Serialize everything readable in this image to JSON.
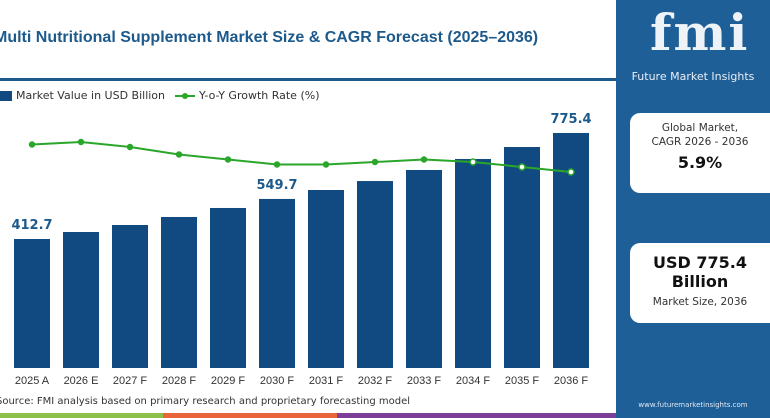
{
  "chart_data": {
    "type": "bar",
    "title": "Multi Nutritional Supplement Market Size & CAGR Forecast (2025–2036)",
    "categories": [
      "2025 A",
      "2026 E",
      "2027 F",
      "2028 F",
      "2029 F",
      "2030 F",
      "2031 F",
      "2032 F",
      "2033 F",
      "2034 F",
      "2035 F",
      "2036 F"
    ],
    "series": [
      {
        "name": "Market Value in USD Billion",
        "type": "bar",
        "color": "#114a80",
        "values": [
          412.7,
          436.6,
          460.6,
          488.0,
          518.8,
          549.7,
          580.3,
          611.0,
          648.8,
          686.4,
          727.4,
          775.4
        ]
      },
      {
        "name": "Y-o-Y Growth Rate (%)",
        "type": "line",
        "color": "#2aa62a",
        "values": [
          6.4,
          6.5,
          6.3,
          6.0,
          5.8,
          5.6,
          5.6,
          5.7,
          5.8,
          5.7,
          5.5,
          5.3
        ]
      }
    ],
    "data_labels": {
      "0": "412.7",
      "5": "549.7",
      "11": "775.4"
    },
    "grid": false,
    "legend": "top-left",
    "source": "Source: FMI analysis based on primary research and proprietary forecasting model"
  },
  "panel": {
    "logo": "fmi",
    "logo_sub": "Future Market Insights",
    "cagr_label1": "Global Market,",
    "cagr_label2": "CAGR 2026 - 2036",
    "cagr_value": "5.9%",
    "size_value1": "USD 775.4",
    "size_value2": "Billion",
    "size_label": "Market Size, 2036",
    "url": "www.futuremarketinsights.com"
  },
  "colors": {
    "primary": "#1d5a8c",
    "bar": "#114a80",
    "line": "#2aa62a",
    "strip": [
      "#8cc04b",
      "#e8663a",
      "#7b3f98"
    ]
  }
}
